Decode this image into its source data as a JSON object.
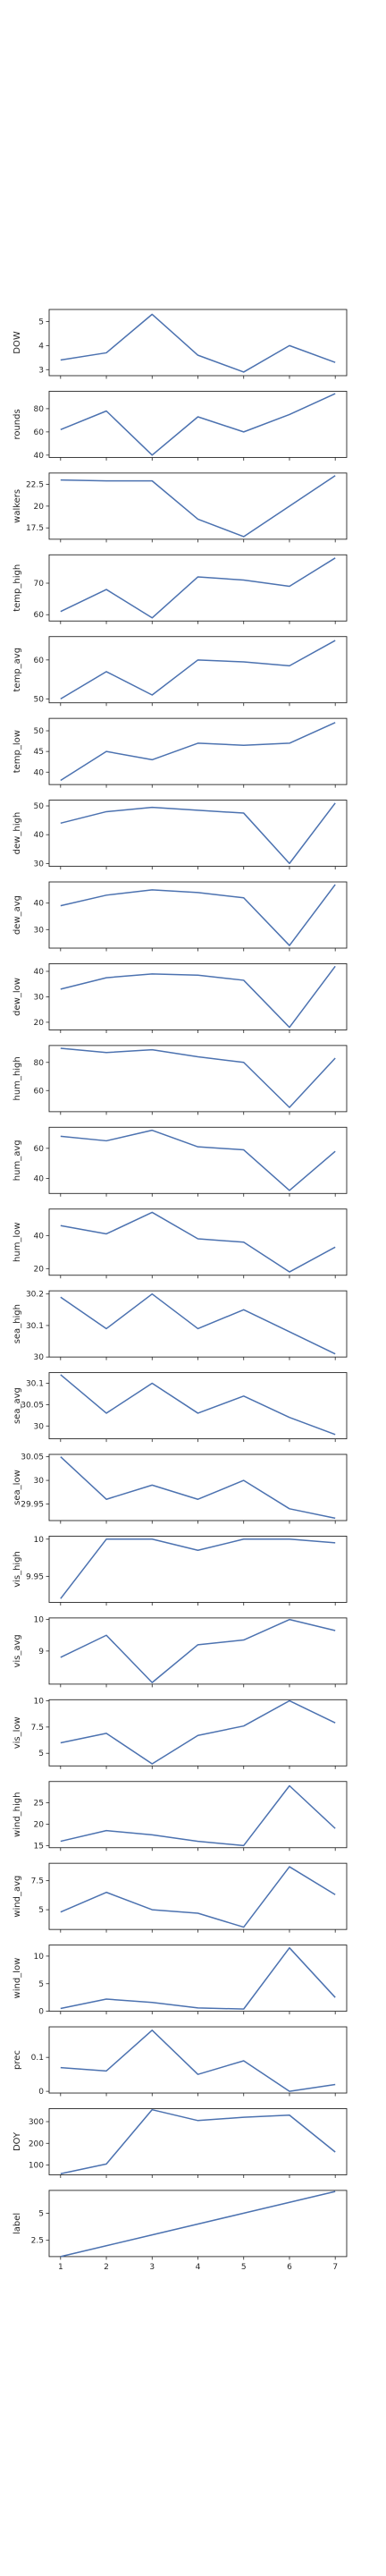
{
  "chart_data": {
    "type": "line",
    "x": [
      1,
      2,
      3,
      4,
      5,
      6,
      7
    ],
    "line_color": "#4c72b0",
    "grid": false,
    "panels": [
      {
        "ylabel": "DOW",
        "values": [
          3.4,
          3.7,
          5.3,
          3.6,
          2.9,
          4.0,
          3.3
        ],
        "yticks": [
          3,
          4,
          5
        ],
        "ylim": [
          2.75,
          5.5
        ]
      },
      {
        "ylabel": "rounds",
        "values": [
          62,
          78,
          40,
          73,
          60,
          75,
          93
        ],
        "yticks": [
          40,
          60,
          80
        ],
        "ylim": [
          38,
          95
        ]
      },
      {
        "ylabel": "walkers",
        "values": [
          23.0,
          22.9,
          22.9,
          18.5,
          16.5,
          20.0,
          23.5
        ],
        "yticks": [
          17.5,
          20.0,
          22.5
        ],
        "ylim": [
          16.2,
          23.8
        ]
      },
      {
        "ylabel": "temp_high",
        "values": [
          61,
          68,
          59,
          72,
          71,
          69,
          78
        ],
        "yticks": [
          60,
          70
        ],
        "ylim": [
          58,
          79
        ]
      },
      {
        "ylabel": "temp_avg",
        "values": [
          50,
          57,
          51,
          60,
          59.5,
          58.5,
          65
        ],
        "yticks": [
          50,
          60
        ],
        "ylim": [
          49,
          66
        ]
      },
      {
        "ylabel": "temp_low",
        "values": [
          38,
          45,
          43,
          47,
          46.5,
          47,
          52
        ],
        "yticks": [
          40,
          45,
          50
        ],
        "ylim": [
          37,
          53
        ]
      },
      {
        "ylabel": "dew_high",
        "values": [
          44,
          48,
          49.5,
          48.5,
          47.5,
          30,
          51
        ],
        "yticks": [
          30,
          40,
          50
        ],
        "ylim": [
          29,
          52
        ]
      },
      {
        "ylabel": "dew_avg",
        "values": [
          39,
          43,
          45,
          44,
          42,
          24,
          47
        ],
        "yticks": [
          30,
          40
        ],
        "ylim": [
          23,
          48
        ]
      },
      {
        "ylabel": "dew_low",
        "values": [
          33,
          37.5,
          39,
          38.5,
          36.5,
          18,
          42
        ],
        "yticks": [
          20,
          30,
          40
        ],
        "ylim": [
          17,
          43
        ]
      },
      {
        "ylabel": "hum_high",
        "values": [
          90,
          87,
          89,
          84,
          80,
          48,
          83
        ],
        "yticks": [
          60,
          80
        ],
        "ylim": [
          45,
          92
        ]
      },
      {
        "ylabel": "hum_avg",
        "values": [
          68,
          65,
          72,
          61,
          59,
          32,
          58
        ],
        "yticks": [
          40,
          60
        ],
        "ylim": [
          30,
          74
        ]
      },
      {
        "ylabel": "hum_low",
        "values": [
          46,
          41,
          54,
          38,
          36,
          18,
          33
        ],
        "yticks": [
          20,
          40
        ],
        "ylim": [
          16,
          56
        ]
      },
      {
        "ylabel": "sea_high",
        "values": [
          30.19,
          30.09,
          30.2,
          30.09,
          30.15,
          30.08,
          30.01
        ],
        "yticks": [
          30.0,
          30.1,
          30.2
        ],
        "ylim": [
          30.0,
          30.21
        ]
      },
      {
        "ylabel": "sea_avg",
        "values": [
          30.12,
          30.03,
          30.1,
          30.03,
          30.07,
          30.02,
          29.98
        ],
        "yticks": [
          30.0,
          30.05,
          30.1
        ],
        "ylim": [
          29.97,
          30.125
        ]
      },
      {
        "ylabel": "sea_low",
        "values": [
          30.05,
          29.96,
          29.99,
          29.96,
          30.0,
          29.94,
          29.92
        ],
        "yticks": [
          29.95,
          30.0,
          30.05
        ],
        "ylim": [
          29.915,
          30.055
        ]
      },
      {
        "ylabel": "vis_high",
        "values": [
          9.92,
          10.0,
          10.0,
          9.985,
          10.0,
          10.0,
          9.995
        ],
        "yticks": [
          9.95,
          10.0
        ],
        "ylim": [
          9.915,
          10.004
        ]
      },
      {
        "ylabel": "vis_avg",
        "values": [
          8.8,
          9.5,
          8.0,
          9.2,
          9.35,
          10.0,
          9.65
        ],
        "yticks": [
          9,
          10
        ],
        "ylim": [
          7.95,
          10.05
        ]
      },
      {
        "ylabel": "vis_low",
        "values": [
          6.0,
          6.9,
          4.0,
          6.7,
          7.6,
          10.0,
          7.9
        ],
        "yticks": [
          5.0,
          7.5,
          10.0
        ],
        "ylim": [
          3.8,
          10.1
        ]
      },
      {
        "ylabel": "wind_high",
        "values": [
          16,
          18.5,
          17.5,
          16,
          15,
          29,
          19
        ],
        "yticks": [
          15,
          20,
          25
        ],
        "ylim": [
          14.5,
          30
        ]
      },
      {
        "ylabel": "wind_avg",
        "values": [
          4.8,
          6.5,
          5.0,
          4.7,
          3.5,
          8.7,
          6.3
        ],
        "yticks": [
          5.0,
          7.5
        ],
        "ylim": [
          3.3,
          9.0
        ]
      },
      {
        "ylabel": "wind_low",
        "values": [
          0.5,
          2.2,
          1.6,
          0.6,
          0.4,
          11.5,
          2.5
        ],
        "yticks": [
          0,
          5,
          10
        ],
        "ylim": [
          0,
          12
        ]
      },
      {
        "ylabel": "prec",
        "values": [
          0.07,
          0.06,
          0.18,
          0.05,
          0.09,
          0.0,
          0.02
        ],
        "yticks": [
          0.0,
          0.1
        ],
        "ylim": [
          -0.005,
          0.19
        ]
      },
      {
        "ylabel": "DOY",
        "values": [
          60,
          105,
          355,
          305,
          320,
          330,
          160
        ],
        "yticks": [
          100,
          200,
          300
        ],
        "ylim": [
          55,
          360
        ]
      },
      {
        "ylabel": "label",
        "values": [
          1,
          2,
          3,
          4,
          5,
          6,
          7
        ],
        "yticks": [
          2.5,
          5.0
        ],
        "ylim": [
          1,
          7.1
        ]
      }
    ]
  }
}
